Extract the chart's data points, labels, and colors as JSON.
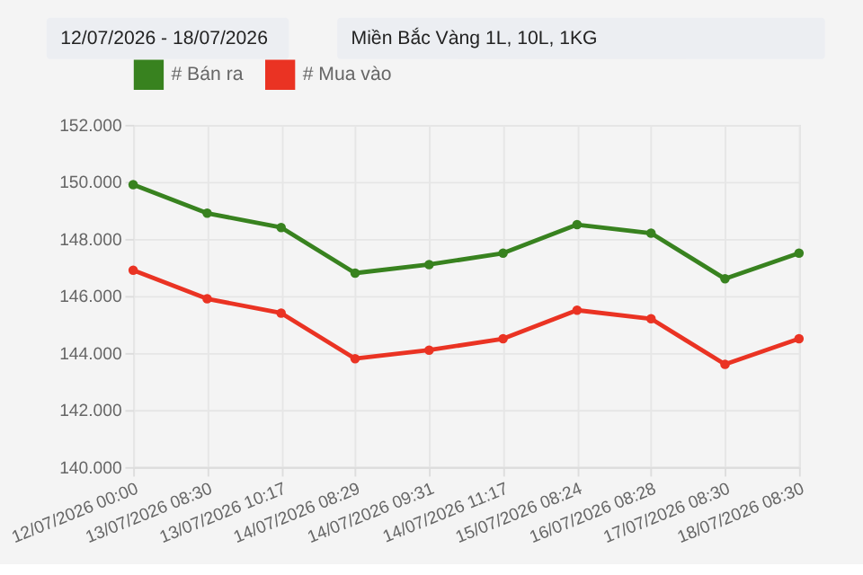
{
  "chart_data": {
    "type": "line",
    "annotations": [
      "12/07/2026 - 18/07/2026",
      "Miền Bắc Vàng 1L, 10L, 1KG"
    ],
    "categories": [
      "12/07/2026 00:00",
      "13/07/2026 08:30",
      "13/07/2026 10:17",
      "14/07/2026 08:29",
      "14/07/2026 09:31",
      "14/07/2026 11:17",
      "15/07/2026 08:24",
      "16/07/2026 08:28",
      "17/07/2026 08:30",
      "18/07/2026 08:30"
    ],
    "series": [
      {
        "name": "# Bán ra",
        "color": "#38821f",
        "values": [
          149900,
          148900,
          148400,
          146800,
          147100,
          147500,
          148500,
          148200,
          146600,
          147500
        ]
      },
      {
        "name": "# Mua vào",
        "color": "#ea3323",
        "values": [
          146900,
          145900,
          145400,
          143800,
          144100,
          144500,
          145500,
          145200,
          143600,
          144500
        ]
      }
    ],
    "ylim": [
      140000,
      152000
    ],
    "yticks": [
      {
        "value": 140000,
        "label": "140.000"
      },
      {
        "value": 142000,
        "label": "142.000"
      },
      {
        "value": 144000,
        "label": "144.000"
      },
      {
        "value": 146000,
        "label": "146.000"
      },
      {
        "value": 148000,
        "label": "148.000"
      },
      {
        "value": 150000,
        "label": "150.000"
      },
      {
        "value": 152000,
        "label": "152.000"
      }
    ],
    "grid": true,
    "legend": "top",
    "marker": "circle",
    "line_style": "solid"
  }
}
